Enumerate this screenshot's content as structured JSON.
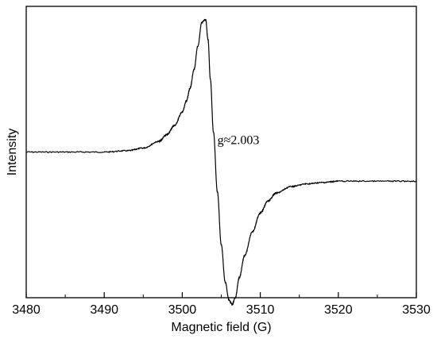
{
  "chart_data": {
    "type": "line",
    "xlabel": "Magnetic field (G)",
    "ylabel": "Intensity",
    "xlim": [
      3480,
      3530
    ],
    "ylim": [
      -1.1,
      1.1
    ],
    "x_ticks": [
      3480,
      3490,
      3500,
      3510,
      3520,
      3530
    ],
    "y_ticks_shown": false,
    "grid": false,
    "legend": "none",
    "annotation": {
      "text": "g≈2.003",
      "x": 3504.5,
      "y": 0.06
    },
    "series": [
      {
        "color": "#000000",
        "x": [
          3480,
          3485,
          3490,
          3493,
          3495,
          3497,
          3498,
          3499,
          3500,
          3500.5,
          3501,
          3501.5,
          3502,
          3502.5,
          3503,
          3503.3,
          3503.6,
          3504,
          3504.5,
          3505,
          3505.5,
          3506,
          3506.4,
          3506.8,
          3507.3,
          3508,
          3509,
          3510,
          3511,
          3512,
          3514,
          3516,
          3518,
          3520,
          3525,
          3530
        ],
        "y": [
          0.0,
          0.0,
          0.0,
          0.01,
          0.03,
          0.08,
          0.13,
          0.2,
          0.3,
          0.38,
          0.48,
          0.62,
          0.8,
          0.98,
          1.0,
          0.85,
          0.55,
          0.15,
          -0.3,
          -0.7,
          -0.98,
          -1.12,
          -1.15,
          -1.1,
          -0.95,
          -0.78,
          -0.6,
          -0.46,
          -0.37,
          -0.31,
          -0.26,
          -0.24,
          -0.23,
          -0.22,
          -0.22,
          -0.22
        ]
      }
    ]
  }
}
